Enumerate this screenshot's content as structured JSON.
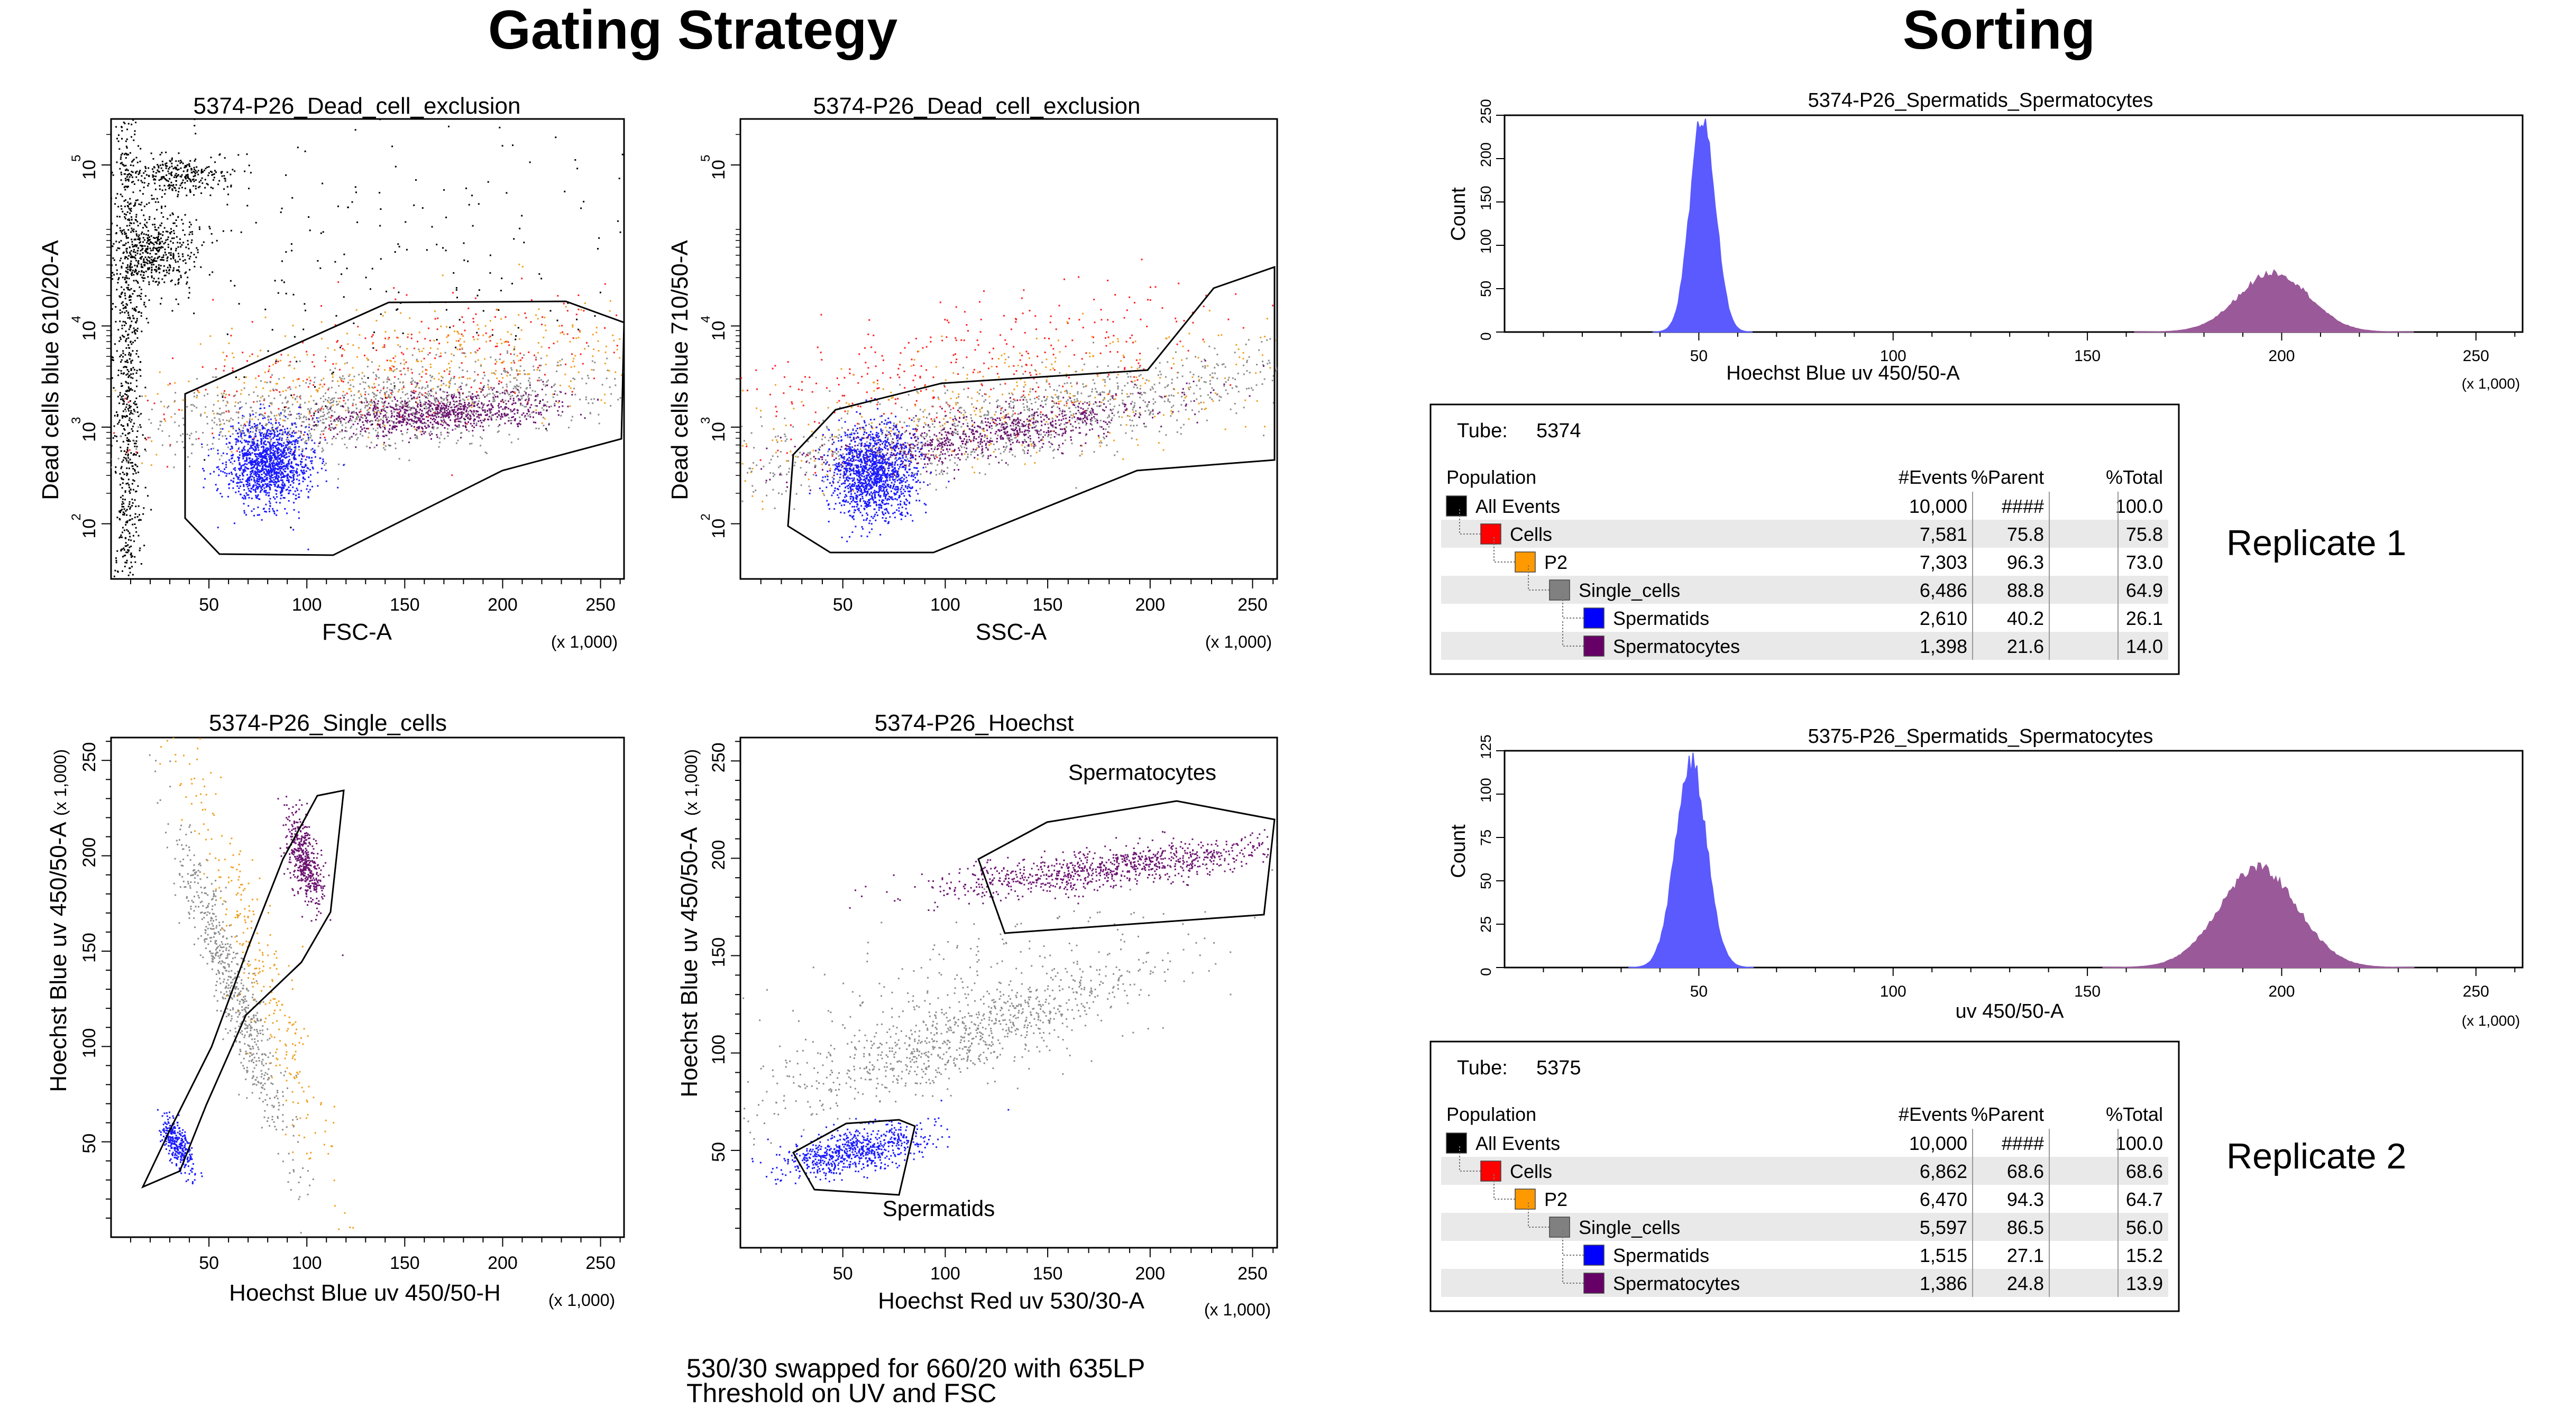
{
  "headings": {
    "gating": "Gating Strategy",
    "sorting": "Sorting"
  },
  "colors": {
    "dead": "#000000",
    "cells": "#ff2020",
    "p2": "#f0a020",
    "single": "#8c8c8c",
    "spermatids": "#1a1aff",
    "spermatocytes": "#6b1470",
    "gate": "#000000",
    "hist_spermatids": "#5a5aff",
    "hist_spermatocytes": "#9a5a9a"
  },
  "multiplier_label": "(x 1,000)",
  "plots": [
    {
      "id": "fsc",
      "title": "5374-P26_Dead_cell_exclusion",
      "xlabel": "FSC-A",
      "ylabel": "Dead cells blue 610/20-A",
      "xticks": [
        "50",
        "100",
        "150",
        "200",
        "250"
      ],
      "yticks": [
        "10",
        "10",
        "10",
        "10"
      ],
      "yexp": [
        "2",
        "3",
        "4",
        "5"
      ]
    },
    {
      "id": "ssc",
      "title": "5374-P26_Dead_cell_exclusion",
      "xlabel": "SSC-A",
      "ylabel": "Dead cells blue 710/50-A",
      "xticks": [
        "50",
        "100",
        "150",
        "200",
        "250"
      ],
      "yticks": [
        "10",
        "10",
        "10",
        "10"
      ],
      "yexp": [
        "2",
        "3",
        "4",
        "5"
      ]
    },
    {
      "id": "single",
      "title": "5374-P26_Single_cells",
      "xlabel": "Hoechst Blue uv 450/50-H",
      "ylabel": "Hoechst Blue uv 450/50-A",
      "xticks": [
        "50",
        "100",
        "150",
        "200",
        "250"
      ],
      "yticks": [
        "50",
        "100",
        "150",
        "200",
        "250"
      ]
    },
    {
      "id": "hoechst",
      "title": "5374-P26_Hoechst",
      "xlabel": "Hoechst Red uv 530/30-A",
      "ylabel": "Hoechst Blue uv 450/50-A",
      "xticks": [
        "50",
        "100",
        "150",
        "200",
        "250"
      ],
      "yticks": [
        "50",
        "100",
        "150",
        "200",
        "250"
      ],
      "labels": {
        "spermatocytes": "Spermatocytes",
        "spermatids": "Spermatids"
      }
    }
  ],
  "note": {
    "line1": "530/30 swapped for 660/20 with 635LP",
    "line2": "Threshold on UV and FSC"
  },
  "chart_data": [
    {
      "type": "histogram",
      "title": "5374-P26_Spermatids_Spermatocytes",
      "xlabel": "Hoechst Blue uv 450/50-A",
      "ylabel": "Count",
      "xlim": [
        0,
        262
      ],
      "ylim": [
        0,
        275
      ],
      "xticks": [
        "50",
        "100",
        "150",
        "200",
        "250"
      ],
      "yticks": [
        "0",
        "50",
        "100",
        "150",
        "200",
        "250"
      ],
      "series": [
        {
          "name": "Spermatids",
          "center": 51,
          "sd": 3.2,
          "peak": 275
        },
        {
          "name": "Spermatocytes",
          "center": 198,
          "sd": 9,
          "peak": 75
        }
      ]
    },
    {
      "type": "histogram",
      "title": "5375-P26_Spermatids_Spermatocytes",
      "xlabel": "uv 450/50-A",
      "ylabel": "Count",
      "xlim": [
        0,
        262
      ],
      "ylim": [
        0,
        125
      ],
      "xticks": [
        "50",
        "100",
        "150",
        "200",
        "250"
      ],
      "yticks": [
        "0",
        "25",
        "50",
        "75",
        "100",
        "125"
      ],
      "series": [
        {
          "name": "Spermatids",
          "center": 48,
          "sd": 4,
          "peak": 118
        },
        {
          "name": "Spermatocytes",
          "center": 194,
          "sd": 10,
          "peak": 57
        }
      ]
    }
  ],
  "tables": [
    {
      "tube_label": "Tube:",
      "tube": "5374",
      "replicate": "Replicate 1",
      "headers": [
        "Population",
        "#Events",
        "%Parent",
        "%Total"
      ],
      "rows": [
        {
          "name": "All Events",
          "events": "10,000",
          "parent": "####",
          "total": "100.0",
          "color": "#000000",
          "level": 0
        },
        {
          "name": "Cells",
          "events": "7,581",
          "parent": "75.8",
          "total": "75.8",
          "color": "#ff0000",
          "level": 1
        },
        {
          "name": "P2",
          "events": "7,303",
          "parent": "96.3",
          "total": "73.0",
          "color": "#ff9900",
          "level": 2
        },
        {
          "name": "Single_cells",
          "events": "6,486",
          "parent": "88.8",
          "total": "64.9",
          "color": "#808080",
          "level": 3
        },
        {
          "name": "Spermatids",
          "events": "2,610",
          "parent": "40.2",
          "total": "26.1",
          "color": "#0000ff",
          "level": 4
        },
        {
          "name": "Spermatocytes",
          "events": "1,398",
          "parent": "21.6",
          "total": "14.0",
          "color": "#660066",
          "level": 4
        }
      ]
    },
    {
      "tube_label": "Tube:",
      "tube": "5375",
      "replicate": "Replicate 2",
      "headers": [
        "Population",
        "#Events",
        "%Parent",
        "%Total"
      ],
      "rows": [
        {
          "name": "All Events",
          "events": "10,000",
          "parent": "####",
          "total": "100.0",
          "color": "#000000",
          "level": 0
        },
        {
          "name": "Cells",
          "events": "6,862",
          "parent": "68.6",
          "total": "68.6",
          "color": "#ff0000",
          "level": 1
        },
        {
          "name": "P2",
          "events": "6,470",
          "parent": "94.3",
          "total": "64.7",
          "color": "#ff9900",
          "level": 2
        },
        {
          "name": "Single_cells",
          "events": "5,597",
          "parent": "86.5",
          "total": "56.0",
          "color": "#808080",
          "level": 3
        },
        {
          "name": "Spermatids",
          "events": "1,515",
          "parent": "27.1",
          "total": "15.2",
          "color": "#0000ff",
          "level": 4
        },
        {
          "name": "Spermatocytes",
          "events": "1,386",
          "parent": "24.8",
          "total": "13.9",
          "color": "#660066",
          "level": 4
        }
      ]
    }
  ]
}
